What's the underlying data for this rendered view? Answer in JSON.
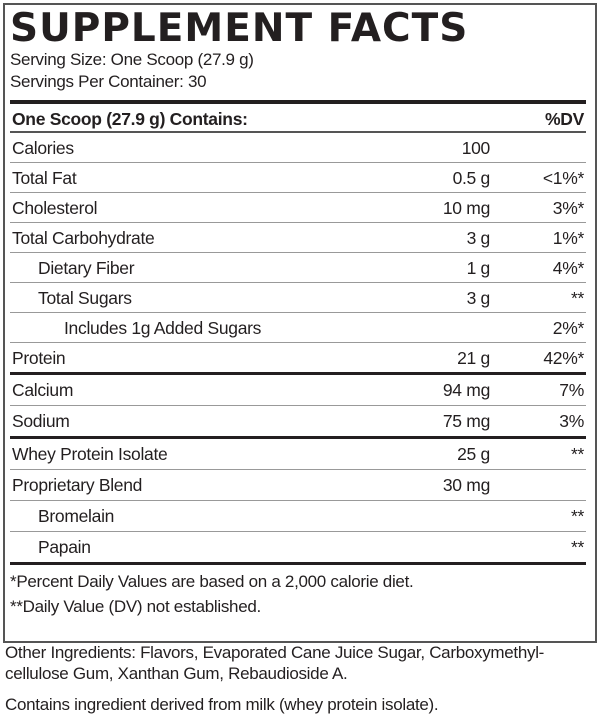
{
  "title": "SUPPLEMENT FACTS",
  "serving_size": "Serving Size: One Scoop (27.9 g)",
  "servings_per_container": "Servings Per Container: 30",
  "header": {
    "label": "One Scoop (27.9 g) Contains:",
    "dv": "%DV"
  },
  "rows": [
    {
      "label": "Calories",
      "amount": "100",
      "dv": "",
      "indent": 0
    },
    {
      "label": "Total Fat",
      "amount": "0.5 g",
      "dv": "<1%*",
      "indent": 0
    },
    {
      "label": "Cholesterol",
      "amount": "10 mg",
      "dv": "3%*",
      "indent": 0
    },
    {
      "label": "Total Carbohydrate",
      "amount": "3 g",
      "dv": "1%*",
      "indent": 0
    },
    {
      "label": "Dietary Fiber",
      "amount": "1 g",
      "dv": "4%*",
      "indent": 1
    },
    {
      "label": "Total Sugars",
      "amount": "3 g",
      "dv": "**",
      "indent": 1
    },
    {
      "label": "Includes 1g Added Sugars",
      "amount": "",
      "dv": "2%*",
      "indent": 2
    },
    {
      "label": "Protein",
      "amount": "21 g",
      "dv": "42%*",
      "indent": 0,
      "thick": true
    },
    {
      "label": "Calcium",
      "amount": "94 mg",
      "dv": "7%",
      "indent": 0
    },
    {
      "label": "Sodium",
      "amount": "75 mg",
      "dv": "3%",
      "indent": 0,
      "thick": true
    },
    {
      "label": "Whey Protein Isolate",
      "amount": "25 g",
      "dv": "**",
      "indent": 0
    },
    {
      "label": "Proprietary Blend",
      "amount": "30 mg",
      "dv": "",
      "indent": 0
    },
    {
      "label": "Bromelain",
      "amount": "",
      "dv": "**",
      "indent": 1
    },
    {
      "label": "Papain",
      "amount": "",
      "dv": "**",
      "indent": 1,
      "thick": true
    }
  ],
  "footnotes": [
    "*Percent Daily Values are based on a 2,000 calorie diet.",
    "**Daily Value (DV) not established."
  ],
  "other_ingredients": "Other Ingredients: Flavors, Evaporated Cane Juice Sugar, Carboxymethyl-cellulose Gum, Xanthan Gum, Rebaudioside A.",
  "allergen": "Contains ingredient derived from milk (whey protein isolate)."
}
